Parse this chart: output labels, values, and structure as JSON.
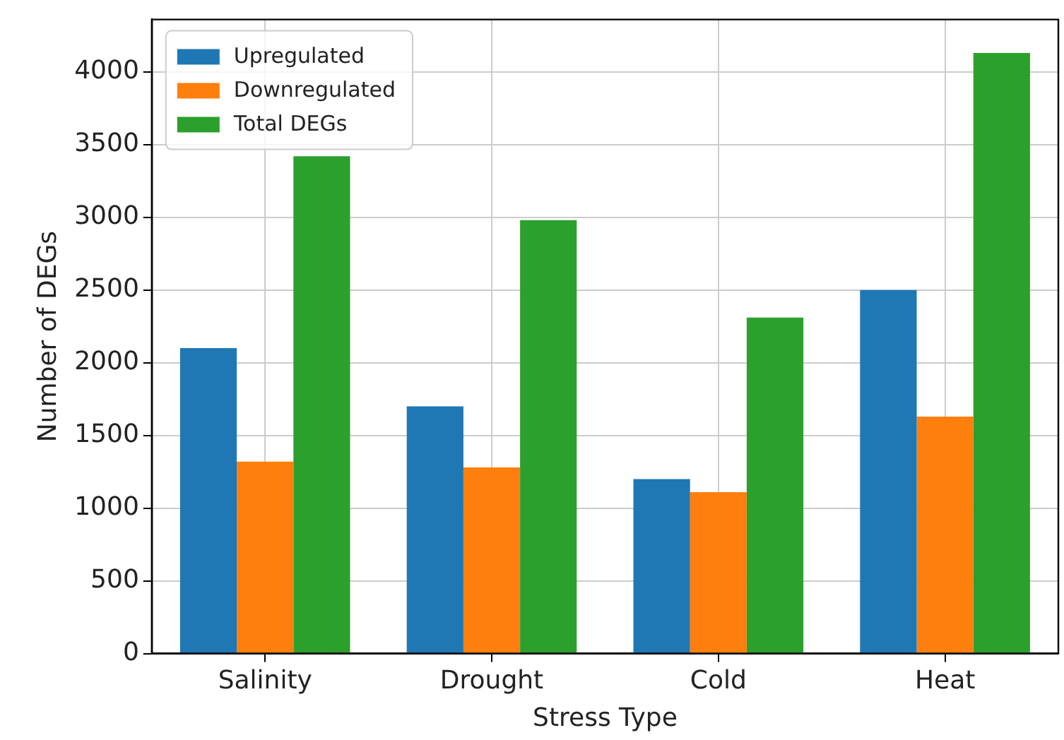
{
  "chart_data": {
    "type": "bar",
    "xlabel": "Stress Type",
    "ylabel": "Number of DEGs",
    "categories": [
      "Salinity",
      "Drought",
      "Cold",
      "Heat"
    ],
    "series": [
      {
        "name": "Upregulated",
        "color": "#1f77b4",
        "values": [
          2100,
          1700,
          1200,
          2500
        ]
      },
      {
        "name": "Downregulated",
        "color": "#ff7f0e",
        "values": [
          1320,
          1280,
          1110,
          1630
        ]
      },
      {
        "name": "Total DEGs",
        "color": "#2ca02c",
        "values": [
          3420,
          2980,
          2310,
          4130
        ]
      }
    ],
    "ylim": [
      0,
      4360
    ],
    "yticks": [
      0,
      500,
      1000,
      1500,
      2000,
      2500,
      3000,
      3500,
      4000
    ],
    "grid": true,
    "legend": "top left"
  }
}
